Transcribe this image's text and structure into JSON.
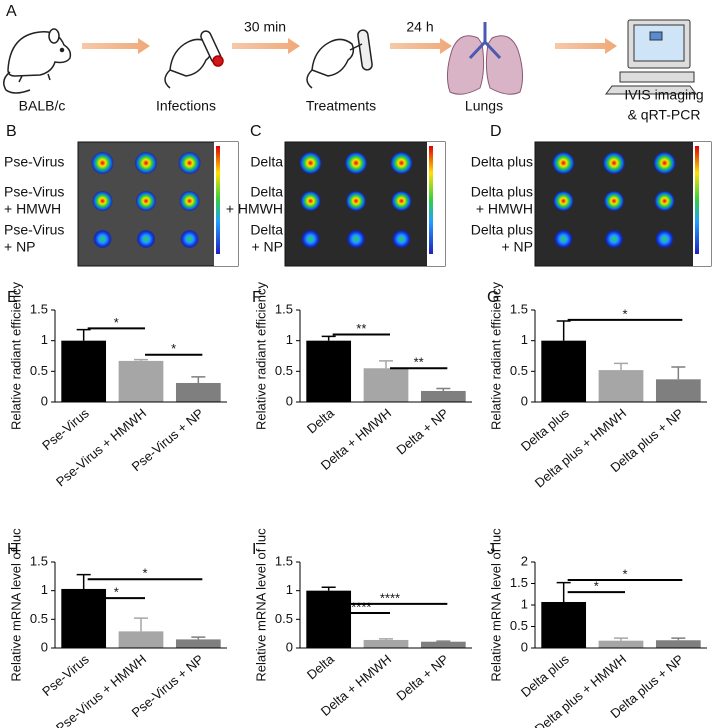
{
  "workflow": {
    "panel": "A",
    "steps": [
      "BALB/c",
      "Infections",
      "Treatments",
      "Lungs",
      [
        "IVIS imaging",
        "& qRT-PCR"
      ]
    ],
    "arrows": [
      "30 min",
      "24 h"
    ]
  },
  "imaging": [
    {
      "panel": "B",
      "rows": [
        [
          "Pse-Virus"
        ],
        [
          "Pse-Virus",
          "+ HMWH"
        ],
        [
          "Pse-Virus",
          "+ NP"
        ]
      ]
    },
    {
      "panel": "C",
      "rows": [
        [
          "Delta"
        ],
        [
          "Delta",
          "+ HMWH"
        ],
        [
          "Delta",
          "+ NP"
        ]
      ]
    },
    {
      "panel": "D",
      "rows": [
        [
          "Delta plus"
        ],
        [
          "Delta plus",
          "+ HMWH"
        ],
        [
          "Delta plus",
          "+ NP"
        ]
      ]
    }
  ],
  "chart_data": [
    {
      "type": "bar",
      "panel": "E",
      "ylabel": "Relative radiant efficiency",
      "categories": [
        "Pse-Virus",
        "Pse-Virus + HMWH",
        "Pse-Virus + NP"
      ],
      "values": [
        1.0,
        0.67,
        0.31
      ],
      "errors": [
        0.18,
        0.02,
        0.1
      ],
      "colors": [
        "#000000",
        "#a6a6a6",
        "#7f7f7f"
      ],
      "ylim": [
        0,
        1.5
      ],
      "yticks": [
        0,
        0.5,
        1,
        1.5
      ],
      "significance": [
        {
          "from": 0,
          "to": 1,
          "y": 1.2,
          "label": "*"
        },
        {
          "from": 1,
          "to": 2,
          "y": 0.77,
          "label": "*"
        }
      ]
    },
    {
      "type": "bar",
      "panel": "F",
      "ylabel": "Relative radiant efficiency",
      "categories": [
        "Delta",
        "Delta + HMWH",
        "Delta + NP"
      ],
      "values": [
        1.0,
        0.55,
        0.18
      ],
      "errors": [
        0.07,
        0.12,
        0.04
      ],
      "colors": [
        "#000000",
        "#a6a6a6",
        "#7f7f7f"
      ],
      "ylim": [
        0,
        1.5
      ],
      "yticks": [
        0,
        0.5,
        1,
        1.5
      ],
      "significance": [
        {
          "from": 0,
          "to": 1,
          "y": 1.1,
          "label": "**"
        },
        {
          "from": 1,
          "to": 2,
          "y": 0.55,
          "label": "**"
        }
      ]
    },
    {
      "type": "bar",
      "panel": "G",
      "ylabel": "Relative radiant efficiency",
      "categories": [
        "Delta plus",
        "Delta plus + HMWH",
        "Delta plus + NP"
      ],
      "values": [
        1.0,
        0.52,
        0.37
      ],
      "errors": [
        0.32,
        0.11,
        0.2
      ],
      "colors": [
        "#000000",
        "#a6a6a6",
        "#7f7f7f"
      ],
      "ylim": [
        0,
        1.5
      ],
      "yticks": [
        0,
        0.5,
        1,
        1.5
      ],
      "significance": [
        {
          "from": 0,
          "to": 2,
          "y": 1.34,
          "label": "*"
        }
      ]
    },
    {
      "type": "bar",
      "panel": "H",
      "ylabel": "Relative mRNA level of luc",
      "categories": [
        "Pse-Virus",
        "Pse-Virus + HMWH",
        "Pse-Virus + NP"
      ],
      "values": [
        1.03,
        0.29,
        0.15
      ],
      "errors": [
        0.25,
        0.23,
        0.04
      ],
      "colors": [
        "#000000",
        "#a6a6a6",
        "#7f7f7f"
      ],
      "ylim": [
        0,
        1.5
      ],
      "yticks": [
        0,
        0.5,
        1,
        1.5
      ],
      "significance": [
        {
          "from": 0,
          "to": 1,
          "y": 0.87,
          "label": "*"
        },
        {
          "from": 0,
          "to": 2,
          "y": 1.2,
          "label": "*"
        }
      ]
    },
    {
      "type": "bar",
      "panel": "I",
      "ylabel": "Relative mRNA level of luc",
      "categories": [
        "Delta",
        "Delta + HMWH",
        "Delta + NP"
      ],
      "values": [
        1.0,
        0.14,
        0.11
      ],
      "errors": [
        0.06,
        0.02,
        0.01
      ],
      "colors": [
        "#000000",
        "#a6a6a6",
        "#7f7f7f"
      ],
      "ylim": [
        0,
        1.5
      ],
      "yticks": [
        0,
        0.5,
        1,
        1.5
      ],
      "significance": [
        {
          "from": 0,
          "to": 1,
          "y": 0.61,
          "label": "****"
        },
        {
          "from": 0,
          "to": 2,
          "y": 0.77,
          "label": "****"
        }
      ]
    },
    {
      "type": "bar",
      "panel": "J",
      "ylabel": "Relative mRNA level of luc",
      "categories": [
        "Delta plus",
        "Delta plus + HMWH",
        "Delta plus + NP"
      ],
      "values": [
        1.07,
        0.17,
        0.18
      ],
      "errors": [
        0.45,
        0.06,
        0.05
      ],
      "colors": [
        "#000000",
        "#a6a6a6",
        "#7f7f7f"
      ],
      "ylim": [
        0,
        2
      ],
      "yticks": [
        0,
        0.5,
        1,
        1.5,
        2
      ],
      "significance": [
        {
          "from": 0,
          "to": 1,
          "y": 1.3,
          "label": "*"
        },
        {
          "from": 0,
          "to": 2,
          "y": 1.58,
          "label": "*"
        }
      ]
    }
  ]
}
